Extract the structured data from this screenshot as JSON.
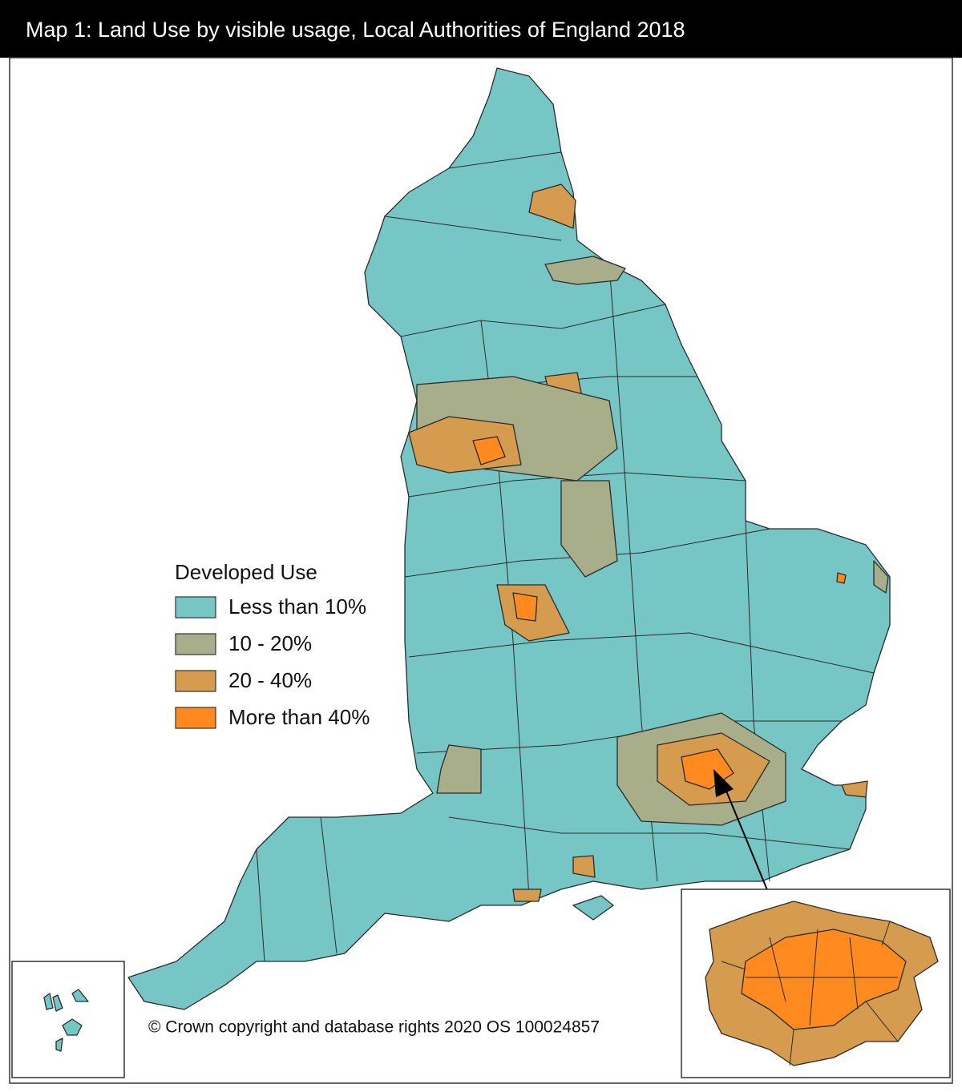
{
  "title": "Map 1: Land Use by visible usage, Local Authorities of England 2018",
  "legend": {
    "title": "Developed Use",
    "items": [
      {
        "label": "Less than 10%",
        "color": "#76c6c6"
      },
      {
        "label": "10 - 20%",
        "color": "#a9ae8a"
      },
      {
        "label": "20 - 40%",
        "color": "#d59b4e"
      },
      {
        "label": "More than 40%",
        "color": "#ff8a1f"
      }
    ]
  },
  "copyright": "© Crown copyright and database rights 2020 OS 100024857"
}
